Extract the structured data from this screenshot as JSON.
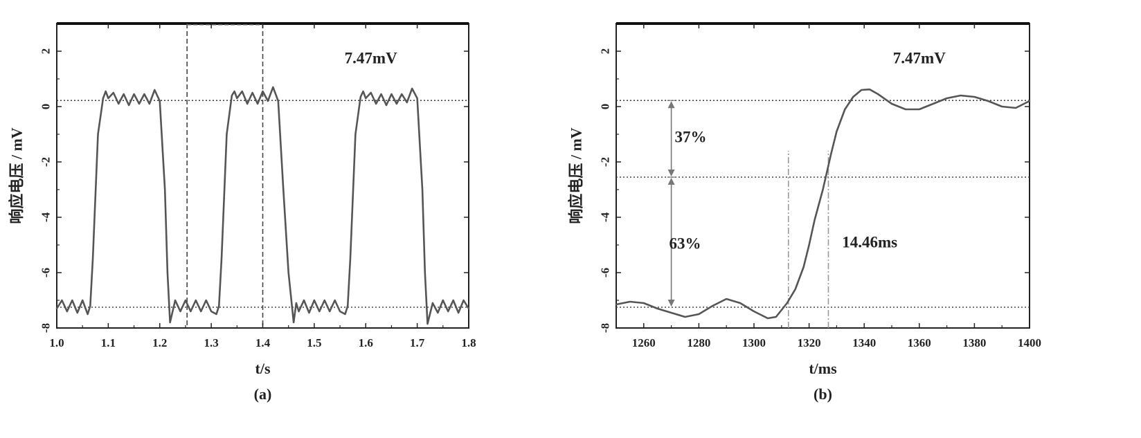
{
  "chart_data": [
    {
      "type": "line",
      "panel_label": "(a)",
      "xlabel": "t/s",
      "ylabel": "响应电压 / mV",
      "xlim": [
        1.0,
        1.8
      ],
      "ylim": [
        -8,
        3
      ],
      "xticks": [
        1.0,
        1.1,
        1.2,
        1.3,
        1.4,
        1.5,
        1.6,
        1.7,
        1.8
      ],
      "xtick_labels": [
        "1.0",
        "1.1",
        "1.2",
        "1.3",
        "1.4",
        "1.5",
        "1.6",
        "1.7",
        "1.8"
      ],
      "yticks": [
        2,
        0,
        -2,
        -4,
        -6,
        -8
      ],
      "ytick_labels": [
        "2",
        "0",
        "-2",
        "-4",
        "-6",
        "-8"
      ],
      "grid": false,
      "annotations": [
        {
          "text": "7.47mV",
          "x": 1.61,
          "y": 1.75
        }
      ],
      "hlines": [
        {
          "y": 0.22,
          "style": "dotted"
        },
        {
          "y": -7.25,
          "style": "dotted"
        }
      ],
      "vlines": [
        {
          "x": 1.253,
          "style": "dashed"
        },
        {
          "x": 1.4,
          "style": "dashed"
        }
      ],
      "series": [
        {
          "x": [
            1.0,
            1.01,
            1.02,
            1.03,
            1.04,
            1.05,
            1.06,
            1.065,
            1.07,
            1.08,
            1.09,
            1.095,
            1.1,
            1.11,
            1.12,
            1.13,
            1.14,
            1.15,
            1.16,
            1.17,
            1.18,
            1.19,
            1.2,
            1.21,
            1.215,
            1.22,
            1.23,
            1.24,
            1.25,
            1.26,
            1.27,
            1.28,
            1.29,
            1.3,
            1.31,
            1.315,
            1.32,
            1.33,
            1.34,
            1.345,
            1.35,
            1.36,
            1.37,
            1.38,
            1.39,
            1.4,
            1.41,
            1.42,
            1.43,
            1.44,
            1.45,
            1.46,
            1.465,
            1.47,
            1.48,
            1.49,
            1.5,
            1.51,
            1.52,
            1.53,
            1.54,
            1.55,
            1.56,
            1.565,
            1.57,
            1.58,
            1.59,
            1.595,
            1.6,
            1.61,
            1.62,
            1.63,
            1.64,
            1.65,
            1.66,
            1.67,
            1.68,
            1.69,
            1.7,
            1.71,
            1.715,
            1.72,
            1.73,
            1.74,
            1.75,
            1.76,
            1.77,
            1.78,
            1.79,
            1.8
          ],
          "y": [
            -7.3,
            -7.0,
            -7.4,
            -7.0,
            -7.45,
            -7.0,
            -7.5,
            -7.2,
            -5.5,
            -1.0,
            0.3,
            0.55,
            0.3,
            0.5,
            0.1,
            0.45,
            0.05,
            0.45,
            0.1,
            0.45,
            0.1,
            0.6,
            0.2,
            -3.0,
            -6.0,
            -7.8,
            -7.0,
            -7.4,
            -7.0,
            -7.4,
            -7.0,
            -7.4,
            -7.0,
            -7.4,
            -7.5,
            -7.2,
            -5.5,
            -1.0,
            0.4,
            0.55,
            0.3,
            0.55,
            0.1,
            0.5,
            0.1,
            0.55,
            0.2,
            0.7,
            0.2,
            -3.0,
            -6.0,
            -7.8,
            -7.1,
            -7.4,
            -7.0,
            -7.45,
            -7.0,
            -7.4,
            -7.0,
            -7.4,
            -7.0,
            -7.4,
            -7.5,
            -7.2,
            -5.5,
            -1.0,
            0.35,
            0.55,
            0.3,
            0.5,
            0.1,
            0.45,
            0.05,
            0.45,
            0.1,
            0.45,
            0.15,
            0.65,
            0.3,
            -3.0,
            -6.0,
            -7.85,
            -7.1,
            -7.45,
            -7.0,
            -7.4,
            -7.0,
            -7.45,
            -7.0,
            -7.3
          ]
        }
      ]
    },
    {
      "type": "line",
      "panel_label": "(b)",
      "xlabel": "t/ms",
      "ylabel": "响应电压 / mV",
      "xlim": [
        1250,
        1400
      ],
      "ylim": [
        -8,
        3
      ],
      "xticks": [
        1260,
        1280,
        1300,
        1320,
        1340,
        1360,
        1380,
        1400
      ],
      "xtick_labels": [
        "1260",
        "1280",
        "1300",
        "1320",
        "1340",
        "1360",
        "1380",
        "1400"
      ],
      "yticks": [
        2,
        0,
        -2,
        -4,
        -6,
        -8
      ],
      "ytick_labels": [
        "2",
        "0",
        "-2",
        "-4",
        "-6",
        "-8"
      ],
      "grid": false,
      "annotations": [
        {
          "text": "7.47mV",
          "x": 1360,
          "y": 1.75
        },
        {
          "text": "37%",
          "x": 1277,
          "y": -1.1
        },
        {
          "text": "63%",
          "x": 1275,
          "y": -4.95
        },
        {
          "text": "14.46ms",
          "x": 1342,
          "y": -4.9
        }
      ],
      "hlines": [
        {
          "y": 0.22,
          "style": "dotted"
        },
        {
          "y": -2.55,
          "style": "dotted"
        },
        {
          "y": -7.25,
          "style": "dotted"
        }
      ],
      "vlines": [
        {
          "x": 1312.5,
          "y_from": -8,
          "y_to": -1.6,
          "style": "dashdot"
        },
        {
          "x": 1327,
          "y_from": -8,
          "y_to": -1.6,
          "style": "dashdot"
        }
      ],
      "arrows": [
        {
          "x": 1270,
          "y_from": 0.22,
          "y_to": -2.55
        },
        {
          "x": 1270,
          "y_from": -2.55,
          "y_to": -7.25
        }
      ],
      "series": [
        {
          "x": [
            1250,
            1255,
            1260,
            1265,
            1270,
            1275,
            1280,
            1285,
            1290,
            1295,
            1300,
            1305,
            1308,
            1310,
            1312,
            1315,
            1318,
            1320,
            1322,
            1325,
            1328,
            1330,
            1333,
            1336,
            1339,
            1342,
            1345,
            1350,
            1355,
            1360,
            1365,
            1370,
            1375,
            1380,
            1385,
            1390,
            1395,
            1400
          ],
          "y": [
            -7.15,
            -7.05,
            -7.1,
            -7.3,
            -7.45,
            -7.6,
            -7.5,
            -7.2,
            -6.95,
            -7.1,
            -7.4,
            -7.65,
            -7.6,
            -7.35,
            -7.1,
            -6.6,
            -5.8,
            -5.0,
            -4.1,
            -3.0,
            -1.7,
            -0.9,
            -0.1,
            0.35,
            0.6,
            0.62,
            0.45,
            0.1,
            -0.1,
            -0.1,
            0.1,
            0.3,
            0.4,
            0.35,
            0.2,
            0.0,
            -0.05,
            0.2
          ]
        }
      ]
    }
  ]
}
